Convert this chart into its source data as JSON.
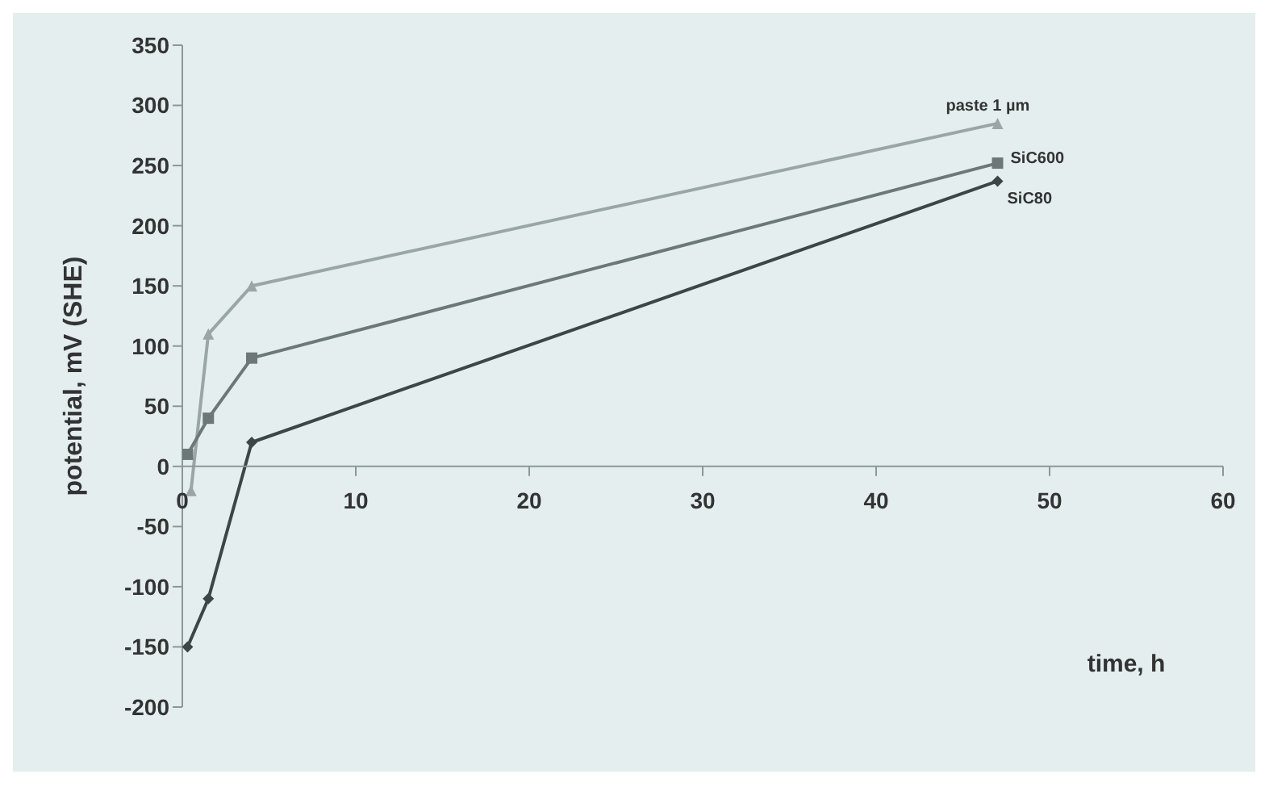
{
  "chart_data": {
    "type": "line",
    "xlabel": "time, h",
    "ylabel": "potential, mV (SHE)",
    "xlim": [
      0,
      60
    ],
    "xticks": [
      0,
      10,
      20,
      30,
      40,
      50,
      60
    ],
    "ylim": [
      -200,
      350
    ],
    "yticks": [
      -200,
      -150,
      -100,
      -50,
      0,
      50,
      100,
      150,
      200,
      250,
      300,
      350
    ],
    "line_style": "solid",
    "series": [
      {
        "name": "paste 1 µm",
        "color": "#9aa6a6",
        "marker": "triangle",
        "x": [
          0.5,
          1.5,
          4,
          47
        ],
        "values": [
          -20,
          110,
          150,
          285
        ]
      },
      {
        "name": "SiC600",
        "color": "#6c7878",
        "marker": "square",
        "x": [
          0.3,
          1.5,
          4,
          47
        ],
        "values": [
          10,
          40,
          90,
          252
        ]
      },
      {
        "name": "SiC80",
        "color": "#3c4646",
        "marker": "diamond",
        "x": [
          0.3,
          1.5,
          4,
          47
        ],
        "values": [
          -150,
          -110,
          20,
          237
        ]
      }
    ]
  }
}
